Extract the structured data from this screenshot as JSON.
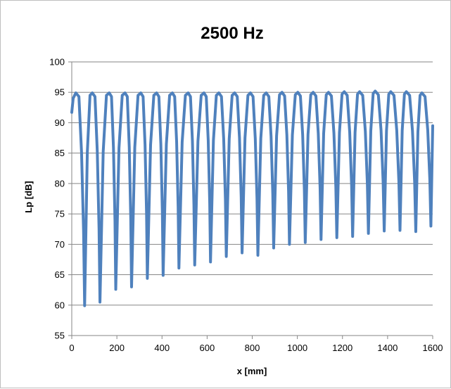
{
  "chart_data": {
    "type": "line",
    "title": "2500 Hz",
    "xlabel": "x [mm]",
    "ylabel": "Lp [dB]",
    "xlim": [
      0,
      1600
    ],
    "ylim": [
      55,
      100
    ],
    "x_ticks": [
      0,
      200,
      400,
      600,
      800,
      1000,
      1200,
      1400,
      1600
    ],
    "y_ticks": [
      55,
      60,
      65,
      70,
      75,
      80,
      85,
      90,
      95,
      100
    ],
    "grid": "horizontal",
    "legend": "none",
    "series": [
      {
        "color": "#4f81bd",
        "x_start": 0,
        "x_end": 1600,
        "start_value": 91.7,
        "end_value": 89.5,
        "peaks": [
          [
            18,
            94.9
          ],
          [
            91,
            94.9
          ],
          [
            166,
            94.9
          ],
          [
            236,
            94.9
          ],
          [
            306,
            94.9
          ],
          [
            376,
            94.9
          ],
          [
            446,
            94.9
          ],
          [
            516,
            94.9
          ],
          [
            586,
            94.9
          ],
          [
            652,
            94.9
          ],
          [
            722,
            94.9
          ],
          [
            792,
            94.9
          ],
          [
            862,
            94.9
          ],
          [
            932,
            95.0
          ],
          [
            1002,
            95.0
          ],
          [
            1070,
            95.0
          ],
          [
            1138,
            95.0
          ],
          [
            1208,
            95.1
          ],
          [
            1276,
            95.1
          ],
          [
            1345,
            95.2
          ],
          [
            1414,
            95.1
          ],
          [
            1483,
            95.1
          ],
          [
            1552,
            94.9
          ]
        ],
        "minima": [
          [
            57,
            59.9
          ],
          [
            125,
            60.5
          ],
          [
            195,
            62.6
          ],
          [
            265,
            63.0
          ],
          [
            335,
            64.4
          ],
          [
            405,
            64.9
          ],
          [
            475,
            66.1
          ],
          [
            545,
            66.6
          ],
          [
            615,
            67.1
          ],
          [
            685,
            68.0
          ],
          [
            755,
            68.6
          ],
          [
            825,
            68.2
          ],
          [
            895,
            69.4
          ],
          [
            965,
            70.0
          ],
          [
            1035,
            70.3
          ],
          [
            1105,
            70.8
          ],
          [
            1175,
            71.1
          ],
          [
            1245,
            71.3
          ],
          [
            1315,
            71.8
          ],
          [
            1385,
            72.2
          ],
          [
            1455,
            72.3
          ],
          [
            1525,
            72.1
          ],
          [
            1592,
            73.0
          ]
        ]
      }
    ]
  }
}
